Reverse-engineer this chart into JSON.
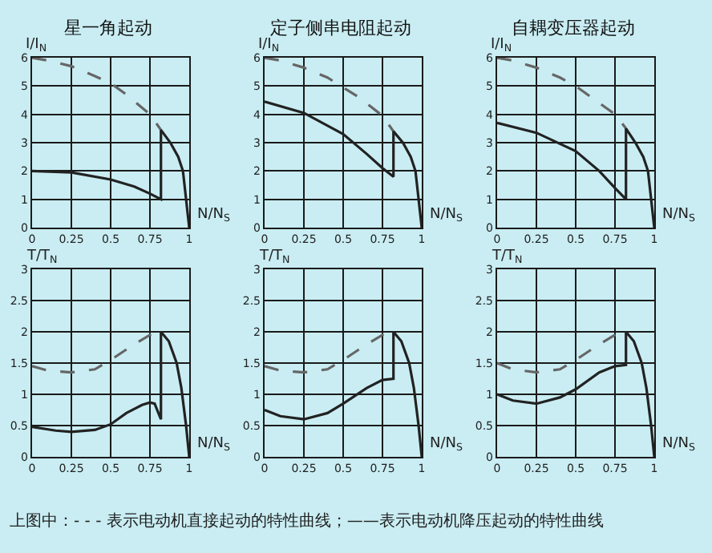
{
  "chart_data": [
    {
      "type": "line",
      "title": "星一角起动",
      "xlabel": "N/N$_{S}$",
      "ylabel": "I/I$_{N}$",
      "xlim": [
        0,
        1
      ],
      "ylim": [
        0,
        6
      ],
      "xticks": [
        0,
        0.25,
        0.5,
        0.75,
        1
      ],
      "yticks": [
        0,
        1,
        2,
        3,
        4,
        5,
        6
      ],
      "grid": true,
      "series": [
        {
          "color": "#666666",
          "line_style": "dashed",
          "x": [
            0,
            0.1,
            0.25,
            0.4,
            0.5,
            0.6,
            0.75,
            0.82
          ],
          "values": [
            6,
            5.9,
            5.7,
            5.35,
            5.1,
            4.7,
            4,
            3.45
          ]
        },
        {
          "color": "#222222",
          "line_style": "solid",
          "x": [
            0,
            0.25,
            0.5,
            0.65,
            0.75,
            0.82,
            0.82,
            0.88,
            0.93,
            0.96,
            0.98,
            1
          ],
          "values": [
            2,
            1.95,
            1.7,
            1.45,
            1.2,
            1,
            3.45,
            3,
            2.5,
            2,
            1,
            0
          ]
        }
      ],
      "annotations": [
        "上图中：- - - 表示电动机直接起动的特性曲线；——表示电动机降压起动的特性曲线"
      ]
    },
    {
      "type": "line",
      "title": "定子侧串电阻起动",
      "xlabel": "N/N$_{S}$",
      "ylabel": "I/I$_{N}$",
      "xlim": [
        0,
        1
      ],
      "ylim": [
        0,
        6
      ],
      "xticks": [
        0,
        0.25,
        0.5,
        0.75,
        1
      ],
      "yticks": [
        0,
        1,
        2,
        3,
        4,
        5,
        6
      ],
      "grid": true,
      "series": [
        {
          "color": "#666666",
          "line_style": "dashed",
          "x": [
            0,
            0.1,
            0.25,
            0.4,
            0.5,
            0.6,
            0.75,
            0.82
          ],
          "values": [
            6,
            5.9,
            5.65,
            5.3,
            4.95,
            4.6,
            3.95,
            3.4
          ]
        },
        {
          "color": "#222222",
          "line_style": "solid",
          "x": [
            0,
            0.25,
            0.5,
            0.65,
            0.75,
            0.82,
            0.82,
            0.88,
            0.93,
            0.96,
            0.98,
            1
          ],
          "values": [
            4.45,
            4.05,
            3.3,
            2.6,
            2.1,
            1.8,
            3.4,
            3,
            2.5,
            2,
            1,
            0
          ]
        }
      ]
    },
    {
      "type": "line",
      "title": "自耦变压器起动",
      "xlabel": "N/N$_{S}$",
      "ylabel": "I/I$_{N}$",
      "xlim": [
        0,
        1
      ],
      "ylim": [
        0,
        6
      ],
      "xticks": [
        0,
        0.25,
        0.5,
        0.75,
        1
      ],
      "yticks": [
        0,
        1,
        2,
        3,
        4,
        5,
        6
      ],
      "grid": true,
      "series": [
        {
          "color": "#666666",
          "line_style": "dashed",
          "x": [
            0,
            0.1,
            0.25,
            0.4,
            0.5,
            0.6,
            0.75,
            0.82
          ],
          "values": [
            6,
            5.9,
            5.65,
            5.3,
            5,
            4.6,
            4,
            3.5
          ]
        },
        {
          "color": "#222222",
          "line_style": "solid",
          "x": [
            0,
            0.25,
            0.5,
            0.65,
            0.75,
            0.82,
            0.82,
            0.88,
            0.93,
            0.96,
            0.98,
            1
          ],
          "values": [
            3.7,
            3.35,
            2.7,
            2,
            1.4,
            1,
            3.5,
            3,
            2.5,
            2,
            1,
            0
          ]
        }
      ]
    },
    {
      "type": "line",
      "xlabel": "N/N$_{S}$",
      "ylabel": "T/T$_{N}$",
      "xlim": [
        0,
        1
      ],
      "ylim": [
        0,
        3
      ],
      "xticks": [
        0,
        0.25,
        0.5,
        0.75,
        1
      ],
      "yticks": [
        0,
        0.5,
        1,
        1.5,
        2,
        2.5,
        3
      ],
      "grid": true,
      "series": [
        {
          "color": "#666666",
          "line_style": "dashed",
          "x": [
            0,
            0.1,
            0.25,
            0.4,
            0.5,
            0.65,
            0.75,
            0.82
          ],
          "values": [
            1.45,
            1.38,
            1.35,
            1.4,
            1.55,
            1.8,
            1.95,
            2
          ]
        },
        {
          "color": "#222222",
          "line_style": "solid",
          "x": [
            0,
            0.15,
            0.25,
            0.4,
            0.5,
            0.6,
            0.7,
            0.75,
            0.78,
            0.82,
            0.82,
            0.87,
            0.92,
            0.95,
            0.98,
            1
          ],
          "values": [
            0.48,
            0.42,
            0.4,
            0.43,
            0.52,
            0.7,
            0.83,
            0.87,
            0.85,
            0.6,
            2,
            1.85,
            1.5,
            1.1,
            0.5,
            0
          ]
        }
      ]
    },
    {
      "type": "line",
      "xlabel": "N/N$_{S}$",
      "ylabel": "T/T$_{N}$",
      "xlim": [
        0,
        1
      ],
      "ylim": [
        0,
        3
      ],
      "xticks": [
        0,
        0.25,
        0.5,
        0.75,
        1
      ],
      "yticks": [
        0,
        0.5,
        1,
        1.5,
        2,
        2.5,
        3
      ],
      "grid": true,
      "series": [
        {
          "color": "#666666",
          "line_style": "dashed",
          "x": [
            0,
            0.1,
            0.25,
            0.4,
            0.5,
            0.65,
            0.75,
            0.82
          ],
          "values": [
            1.45,
            1.38,
            1.35,
            1.4,
            1.55,
            1.8,
            1.95,
            2
          ]
        },
        {
          "color": "#222222",
          "line_style": "solid",
          "x": [
            0,
            0.1,
            0.25,
            0.4,
            0.5,
            0.65,
            0.75,
            0.82,
            0.82,
            0.87,
            0.92,
            0.95,
            0.98,
            1
          ],
          "values": [
            0.75,
            0.65,
            0.6,
            0.7,
            0.85,
            1.1,
            1.23,
            1.25,
            2,
            1.85,
            1.5,
            1.1,
            0.5,
            0
          ]
        }
      ]
    },
    {
      "type": "line",
      "xlabel": "N/N$_{S}$",
      "ylabel": "T/T$_{N}$",
      "xlim": [
        0,
        1
      ],
      "ylim": [
        0,
        3
      ],
      "xticks": [
        0,
        0.25,
        0.5,
        0.75,
        1
      ],
      "yticks": [
        0,
        0.5,
        1,
        1.5,
        2,
        2.5,
        3
      ],
      "grid": true,
      "series": [
        {
          "color": "#666666",
          "line_style": "dashed",
          "x": [
            0,
            0.1,
            0.25,
            0.4,
            0.5,
            0.65,
            0.75,
            0.82
          ],
          "values": [
            1.5,
            1.4,
            1.35,
            1.4,
            1.55,
            1.8,
            1.95,
            2
          ]
        },
        {
          "color": "#222222",
          "line_style": "solid",
          "x": [
            0,
            0.1,
            0.25,
            0.4,
            0.5,
            0.65,
            0.75,
            0.82,
            0.82,
            0.87,
            0.92,
            0.95,
            0.98,
            1
          ],
          "values": [
            1,
            0.9,
            0.85,
            0.95,
            1.08,
            1.35,
            1.45,
            1.47,
            2,
            1.85,
            1.5,
            1.1,
            0.5,
            0
          ]
        }
      ]
    }
  ]
}
